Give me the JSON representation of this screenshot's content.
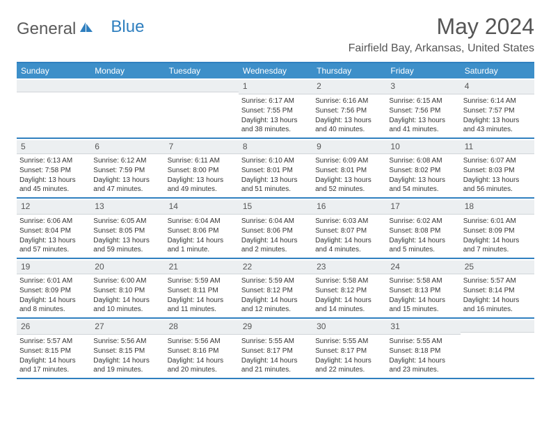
{
  "logo": {
    "part1": "General",
    "part2": "Blue"
  },
  "header": {
    "month_title": "May 2024",
    "location": "Fairfield Bay, Arkansas, United States"
  },
  "colors": {
    "accent": "#3d8fc9",
    "border": "#2f7fbf",
    "daynum_bg": "#eceff1",
    "text": "#333333",
    "logo_gray": "#5a5a5a"
  },
  "calendar": {
    "day_names": [
      "Sunday",
      "Monday",
      "Tuesday",
      "Wednesday",
      "Thursday",
      "Friday",
      "Saturday"
    ],
    "weeks": [
      [
        null,
        null,
        null,
        {
          "n": "1",
          "sr": "6:17 AM",
          "ss": "7:55 PM",
          "dl": "13 hours and 38 minutes."
        },
        {
          "n": "2",
          "sr": "6:16 AM",
          "ss": "7:56 PM",
          "dl": "13 hours and 40 minutes."
        },
        {
          "n": "3",
          "sr": "6:15 AM",
          "ss": "7:56 PM",
          "dl": "13 hours and 41 minutes."
        },
        {
          "n": "4",
          "sr": "6:14 AM",
          "ss": "7:57 PM",
          "dl": "13 hours and 43 minutes."
        }
      ],
      [
        {
          "n": "5",
          "sr": "6:13 AM",
          "ss": "7:58 PM",
          "dl": "13 hours and 45 minutes."
        },
        {
          "n": "6",
          "sr": "6:12 AM",
          "ss": "7:59 PM",
          "dl": "13 hours and 47 minutes."
        },
        {
          "n": "7",
          "sr": "6:11 AM",
          "ss": "8:00 PM",
          "dl": "13 hours and 49 minutes."
        },
        {
          "n": "8",
          "sr": "6:10 AM",
          "ss": "8:01 PM",
          "dl": "13 hours and 51 minutes."
        },
        {
          "n": "9",
          "sr": "6:09 AM",
          "ss": "8:01 PM",
          "dl": "13 hours and 52 minutes."
        },
        {
          "n": "10",
          "sr": "6:08 AM",
          "ss": "8:02 PM",
          "dl": "13 hours and 54 minutes."
        },
        {
          "n": "11",
          "sr": "6:07 AM",
          "ss": "8:03 PM",
          "dl": "13 hours and 56 minutes."
        }
      ],
      [
        {
          "n": "12",
          "sr": "6:06 AM",
          "ss": "8:04 PM",
          "dl": "13 hours and 57 minutes."
        },
        {
          "n": "13",
          "sr": "6:05 AM",
          "ss": "8:05 PM",
          "dl": "13 hours and 59 minutes."
        },
        {
          "n": "14",
          "sr": "6:04 AM",
          "ss": "8:06 PM",
          "dl": "14 hours and 1 minute."
        },
        {
          "n": "15",
          "sr": "6:04 AM",
          "ss": "8:06 PM",
          "dl": "14 hours and 2 minutes."
        },
        {
          "n": "16",
          "sr": "6:03 AM",
          "ss": "8:07 PM",
          "dl": "14 hours and 4 minutes."
        },
        {
          "n": "17",
          "sr": "6:02 AM",
          "ss": "8:08 PM",
          "dl": "14 hours and 5 minutes."
        },
        {
          "n": "18",
          "sr": "6:01 AM",
          "ss": "8:09 PM",
          "dl": "14 hours and 7 minutes."
        }
      ],
      [
        {
          "n": "19",
          "sr": "6:01 AM",
          "ss": "8:09 PM",
          "dl": "14 hours and 8 minutes."
        },
        {
          "n": "20",
          "sr": "6:00 AM",
          "ss": "8:10 PM",
          "dl": "14 hours and 10 minutes."
        },
        {
          "n": "21",
          "sr": "5:59 AM",
          "ss": "8:11 PM",
          "dl": "14 hours and 11 minutes."
        },
        {
          "n": "22",
          "sr": "5:59 AM",
          "ss": "8:12 PM",
          "dl": "14 hours and 12 minutes."
        },
        {
          "n": "23",
          "sr": "5:58 AM",
          "ss": "8:12 PM",
          "dl": "14 hours and 14 minutes."
        },
        {
          "n": "24",
          "sr": "5:58 AM",
          "ss": "8:13 PM",
          "dl": "14 hours and 15 minutes."
        },
        {
          "n": "25",
          "sr": "5:57 AM",
          "ss": "8:14 PM",
          "dl": "14 hours and 16 minutes."
        }
      ],
      [
        {
          "n": "26",
          "sr": "5:57 AM",
          "ss": "8:15 PM",
          "dl": "14 hours and 17 minutes."
        },
        {
          "n": "27",
          "sr": "5:56 AM",
          "ss": "8:15 PM",
          "dl": "14 hours and 19 minutes."
        },
        {
          "n": "28",
          "sr": "5:56 AM",
          "ss": "8:16 PM",
          "dl": "14 hours and 20 minutes."
        },
        {
          "n": "29",
          "sr": "5:55 AM",
          "ss": "8:17 PM",
          "dl": "14 hours and 21 minutes."
        },
        {
          "n": "30",
          "sr": "5:55 AM",
          "ss": "8:17 PM",
          "dl": "14 hours and 22 minutes."
        },
        {
          "n": "31",
          "sr": "5:55 AM",
          "ss": "8:18 PM",
          "dl": "14 hours and 23 minutes."
        },
        null
      ]
    ],
    "labels": {
      "sunrise": "Sunrise:",
      "sunset": "Sunset:",
      "daylight": "Daylight:"
    }
  }
}
